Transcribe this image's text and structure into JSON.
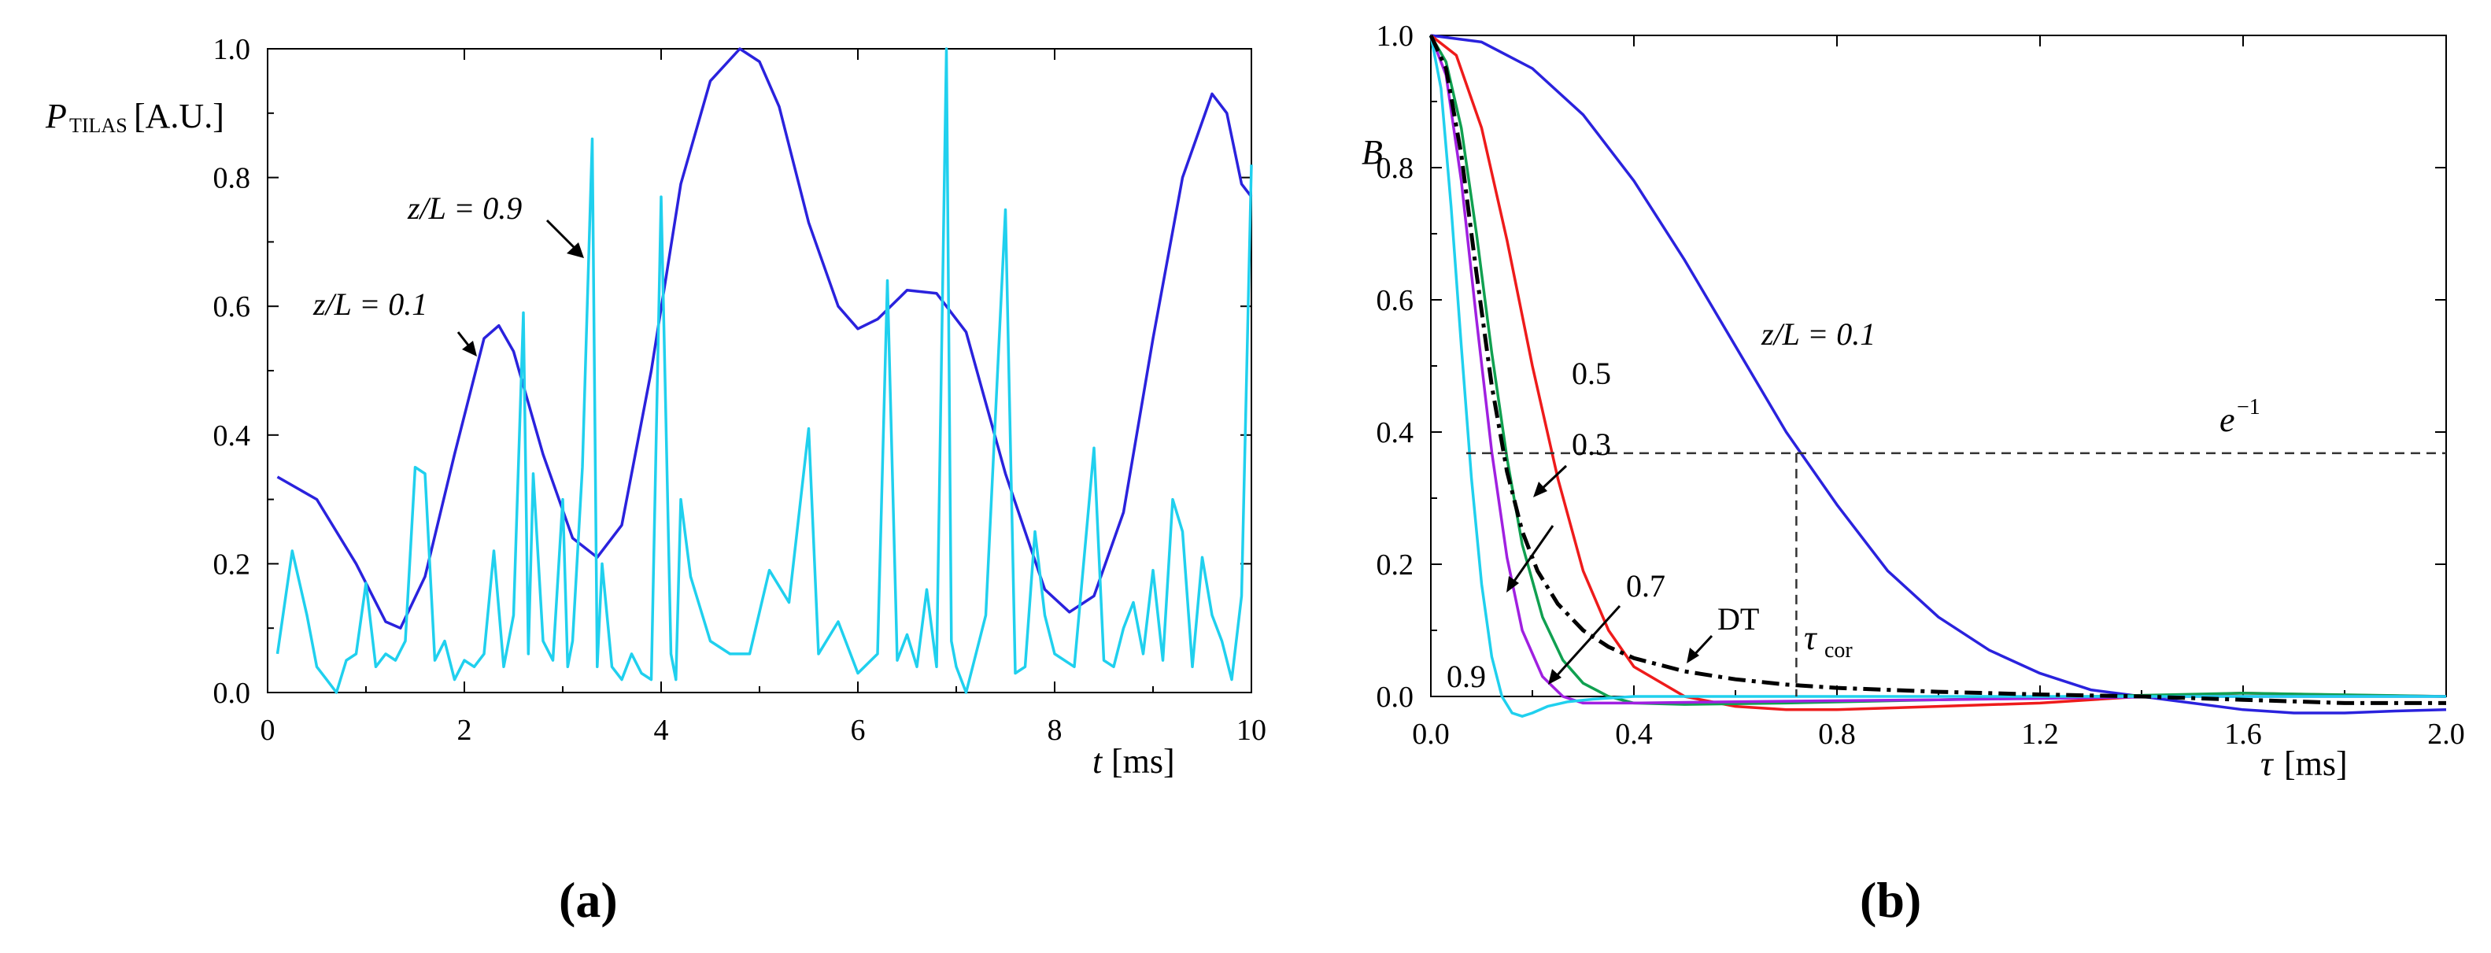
{
  "chart_data": [
    {
      "id": "a",
      "type": "line",
      "caption": "(a)",
      "xlabel_var": "t",
      "xlabel_unit": "[ms]",
      "ylabel_var": "P",
      "ylabel_sub": "TILAS",
      "ylabel_unit": "[A.U.]",
      "xlim": [
        0,
        10
      ],
      "ylim": [
        0,
        1
      ],
      "xticks": [
        0,
        2,
        4,
        6,
        8,
        10
      ],
      "xtick_labels": [
        "0",
        "2",
        "4",
        "6",
        "8",
        "10"
      ],
      "yticks": [
        0,
        0.2,
        0.4,
        0.6,
        0.8,
        1.0
      ],
      "ytick_labels": [
        "0.0",
        "0.2",
        "0.4",
        "0.6",
        "0.8",
        "1.0"
      ],
      "annotations": [
        {
          "text": "z/L = 0.9",
          "x": 3.3,
          "y": 0.77
        },
        {
          "text": "z/L = 0.1",
          "x": 2.2,
          "y": 0.57
        }
      ],
      "series": [
        {
          "name": "z/L = 0.1",
          "color": "#2a22dd",
          "x": [
            0.1,
            0.5,
            0.9,
            1.2,
            1.35,
            1.6,
            1.9,
            2.2,
            2.35,
            2.5,
            2.8,
            3.1,
            3.35,
            3.6,
            3.9,
            4.2,
            4.5,
            4.8,
            5.0,
            5.2,
            5.5,
            5.8,
            6.0,
            6.2,
            6.5,
            6.8,
            7.1,
            7.5,
            7.9,
            8.15,
            8.4,
            8.7,
            9.0,
            9.3,
            9.6,
            9.75,
            9.9,
            10.0
          ],
          "y": [
            0.335,
            0.3,
            0.2,
            0.11,
            0.1,
            0.18,
            0.37,
            0.55,
            0.57,
            0.53,
            0.37,
            0.24,
            0.21,
            0.26,
            0.5,
            0.79,
            0.95,
            1.0,
            0.98,
            0.91,
            0.73,
            0.6,
            0.565,
            0.58,
            0.625,
            0.62,
            0.56,
            0.34,
            0.16,
            0.125,
            0.15,
            0.28,
            0.55,
            0.8,
            0.93,
            0.9,
            0.79,
            0.77
          ]
        },
        {
          "name": "z/L = 0.9",
          "color": "#20d0ee",
          "x": [
            0.1,
            0.25,
            0.4,
            0.5,
            0.6,
            0.7,
            0.8,
            0.9,
            1.0,
            1.1,
            1.2,
            1.3,
            1.4,
            1.5,
            1.6,
            1.7,
            1.8,
            1.9,
            2.0,
            2.1,
            2.2,
            2.3,
            2.4,
            2.5,
            2.6,
            2.65,
            2.7,
            2.8,
            2.9,
            3.0,
            3.05,
            3.1,
            3.2,
            3.3,
            3.35,
            3.4,
            3.5,
            3.6,
            3.7,
            3.8,
            3.9,
            4.0,
            4.1,
            4.15,
            4.2,
            4.3,
            4.5,
            4.7,
            4.9,
            5.1,
            5.3,
            5.5,
            5.6,
            5.8,
            6.0,
            6.2,
            6.3,
            6.4,
            6.5,
            6.6,
            6.7,
            6.8,
            6.9,
            6.95,
            7.0,
            7.1,
            7.3,
            7.5,
            7.6,
            7.7,
            7.8,
            7.9,
            8.0,
            8.2,
            8.4,
            8.5,
            8.6,
            8.7,
            8.8,
            8.9,
            9.0,
            9.1,
            9.2,
            9.3,
            9.4,
            9.5,
            9.6,
            9.7,
            9.8,
            9.9,
            10.0
          ],
          "y": [
            0.06,
            0.22,
            0.12,
            0.04,
            0.02,
            0.0,
            0.05,
            0.06,
            0.17,
            0.04,
            0.06,
            0.05,
            0.08,
            0.35,
            0.34,
            0.05,
            0.08,
            0.02,
            0.05,
            0.04,
            0.06,
            0.22,
            0.04,
            0.12,
            0.59,
            0.06,
            0.34,
            0.08,
            0.05,
            0.3,
            0.04,
            0.08,
            0.35,
            0.86,
            0.04,
            0.2,
            0.04,
            0.02,
            0.06,
            0.03,
            0.02,
            0.77,
            0.06,
            0.02,
            0.3,
            0.18,
            0.08,
            0.06,
            0.06,
            0.19,
            0.14,
            0.41,
            0.06,
            0.11,
            0.03,
            0.06,
            0.64,
            0.05,
            0.09,
            0.04,
            0.16,
            0.04,
            1.0,
            0.08,
            0.04,
            0.0,
            0.12,
            0.75,
            0.03,
            0.04,
            0.25,
            0.12,
            0.06,
            0.04,
            0.38,
            0.05,
            0.04,
            0.1,
            0.14,
            0.06,
            0.19,
            0.05,
            0.3,
            0.25,
            0.04,
            0.21,
            0.12,
            0.08,
            0.02,
            0.15,
            0.82
          ]
        }
      ]
    },
    {
      "id": "b",
      "type": "line",
      "caption": "(b)",
      "xlabel_var": "τ",
      "xlabel_unit": "[ms]",
      "ylabel_var": "B",
      "xlim": [
        0,
        2.0
      ],
      "ylim": [
        0,
        1.0
      ],
      "xticks": [
        0,
        0.4,
        0.8,
        1.2,
        1.6,
        2.0
      ],
      "xtick_labels": [
        "0.0",
        "0.4",
        "0.8",
        "1.2",
        "1.6",
        "2.0"
      ],
      "yticks": [
        0,
        0.2,
        0.4,
        0.6,
        0.8,
        1.0
      ],
      "ytick_labels": [
        "0.0",
        "0.2",
        "0.4",
        "0.6",
        "0.8",
        "1.0"
      ],
      "reference_line": {
        "label": "e",
        "label_sup": "−1",
        "y": 0.368
      },
      "marker_line": {
        "label": "τ",
        "label_sub": "cor",
        "x": 0.72
      },
      "annotations": [
        {
          "text": "z/L = 0.1",
          "x": 1.05,
          "y": 0.58
        },
        {
          "text": "0.3",
          "x": 0.275,
          "y": 0.66
        },
        {
          "text": "0.5",
          "x": 0.275,
          "y": 0.53
        },
        {
          "text": "0.7",
          "x": 0.52,
          "y": 0.16
        },
        {
          "text": "DT",
          "x": 0.73,
          "y": 0.115
        },
        {
          "text": "0.9",
          "x": 0.02,
          "y": 0.06
        }
      ],
      "series": [
        {
          "name": "z/L = 0.1",
          "color": "#2a22dd",
          "x": [
            0,
            0.1,
            0.2,
            0.3,
            0.4,
            0.5,
            0.6,
            0.7,
            0.8,
            0.9,
            1.0,
            1.1,
            1.2,
            1.3,
            1.4,
            1.5,
            1.6,
            1.7,
            1.8,
            1.9,
            2.0
          ],
          "y": [
            1.0,
            0.99,
            0.95,
            0.88,
            0.78,
            0.66,
            0.53,
            0.4,
            0.29,
            0.19,
            0.12,
            0.07,
            0.035,
            0.01,
            0.0,
            -0.01,
            -0.02,
            -0.025,
            -0.025,
            -0.022,
            -0.02
          ]
        },
        {
          "name": "0.3",
          "color": "#ee1b1b",
          "x": [
            0,
            0.05,
            0.1,
            0.15,
            0.2,
            0.25,
            0.3,
            0.35,
            0.4,
            0.5,
            0.6,
            0.7,
            0.8,
            1.0,
            1.2,
            1.4,
            1.6,
            1.8,
            2.0
          ],
          "y": [
            1.0,
            0.97,
            0.86,
            0.69,
            0.5,
            0.33,
            0.19,
            0.1,
            0.045,
            0.0,
            -0.015,
            -0.02,
            -0.02,
            -0.015,
            -0.01,
            0.0,
            0.005,
            0.002,
            0.0
          ]
        },
        {
          "name": "0.5",
          "color": "#10a050",
          "x": [
            0,
            0.03,
            0.06,
            0.09,
            0.12,
            0.15,
            0.18,
            0.22,
            0.26,
            0.3,
            0.35,
            0.4,
            0.5,
            0.7,
            1.0,
            1.3,
            1.6,
            2.0
          ],
          "y": [
            1.0,
            0.96,
            0.86,
            0.7,
            0.52,
            0.36,
            0.23,
            0.12,
            0.055,
            0.02,
            0.0,
            -0.01,
            -0.012,
            -0.01,
            -0.005,
            0.0,
            0.005,
            0.0
          ]
        },
        {
          "name": "0.7",
          "color": "#a020e0",
          "x": [
            0,
            0.03,
            0.06,
            0.09,
            0.12,
            0.15,
            0.18,
            0.22,
            0.26,
            0.3,
            0.4,
            0.6,
            1.0,
            1.5,
            2.0
          ],
          "y": [
            1.0,
            0.94,
            0.78,
            0.57,
            0.37,
            0.21,
            0.1,
            0.03,
            0.0,
            -0.01,
            -0.01,
            -0.008,
            -0.005,
            0.0,
            0.0
          ]
        },
        {
          "name": "0.9",
          "color": "#20d0ee",
          "x": [
            0,
            0.02,
            0.04,
            0.06,
            0.08,
            0.1,
            0.12,
            0.14,
            0.16,
            0.18,
            0.2,
            0.23,
            0.27,
            0.32,
            0.4,
            0.6,
            1.0,
            2.0
          ],
          "y": [
            1.0,
            0.92,
            0.74,
            0.53,
            0.33,
            0.17,
            0.06,
            0.0,
            -0.025,
            -0.03,
            -0.025,
            -0.015,
            -0.008,
            -0.004,
            0.0,
            0.0,
            0.0,
            0.0
          ]
        },
        {
          "name": "DT",
          "color": "#000000",
          "dashed": true,
          "x": [
            0,
            0.03,
            0.06,
            0.09,
            0.12,
            0.15,
            0.18,
            0.21,
            0.25,
            0.3,
            0.35,
            0.4,
            0.5,
            0.6,
            0.7,
            0.8,
            0.9,
            1.0,
            1.2,
            1.4,
            1.6,
            1.8,
            2.0
          ],
          "y": [
            1.0,
            0.95,
            0.82,
            0.64,
            0.47,
            0.34,
            0.25,
            0.19,
            0.14,
            0.1,
            0.075,
            0.058,
            0.038,
            0.026,
            0.018,
            0.013,
            0.01,
            0.007,
            0.003,
            0.0,
            -0.005,
            -0.01,
            -0.01
          ]
        }
      ]
    }
  ]
}
